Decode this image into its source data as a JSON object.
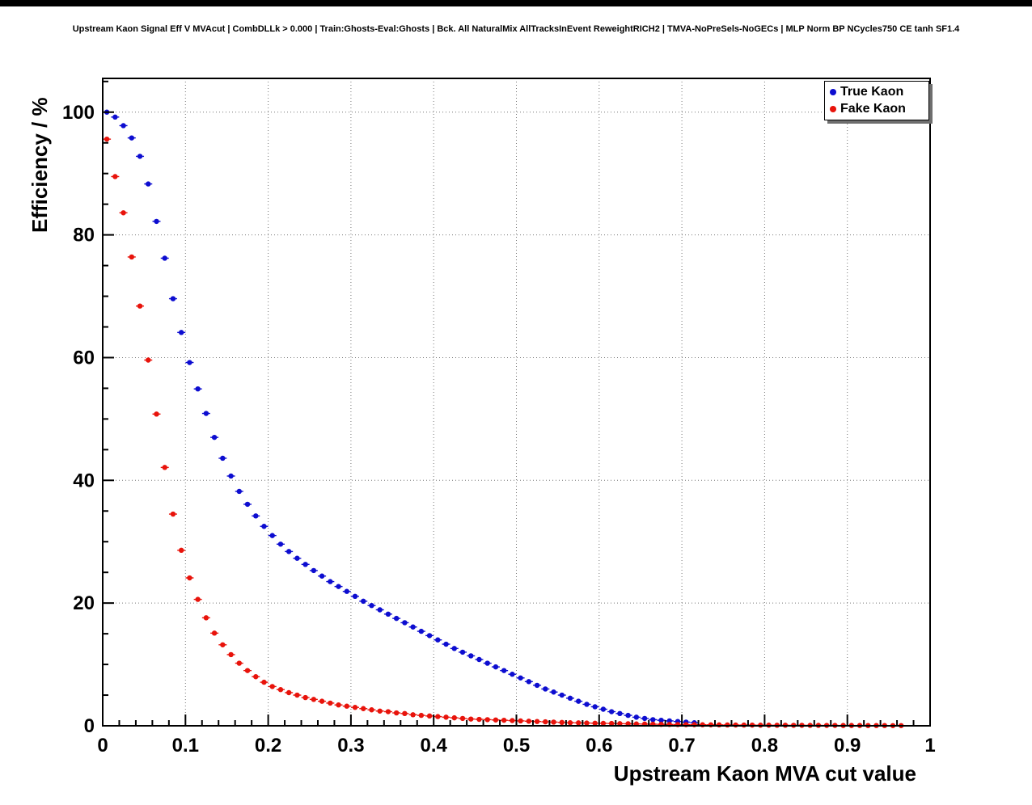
{
  "window": {
    "top_bar_color": "#000000",
    "background": "#ffffff"
  },
  "title": "Upstream Kaon Signal Eff V MVAcut | CombDLLk > 0.000 | Train:Ghosts-Eval:Ghosts | Bck. All NaturalMix AllTracksInEvent ReweightRICH2 | TMVA-NoPreSels-NoGECs | MLP Norm BP NCycles750 CE tanh SF1.4",
  "legend": {
    "position": "top-right",
    "entries": [
      {
        "label": "True Kaon",
        "color": "#0d0dd0",
        "marker": "dot"
      },
      {
        "label": "Fake Kaon",
        "color": "#e8130b",
        "marker": "dot"
      }
    ]
  },
  "chart_data": {
    "type": "scatter",
    "title": "Upstream Kaon Signal Eff V MVAcut | CombDLLk > 0.000 | Train:Ghosts-Eval:Ghosts | Bck. All NaturalMix AllTracksInEvent ReweightRICH2 | TMVA-NoPreSels-NoGECs | MLP Norm BP NCycles750 CE tanh SF1.4",
    "xlabel": "Upstream Kaon MVA cut value",
    "ylabel": "Efficiency / %",
    "xlim": [
      0,
      1
    ],
    "ylim": [
      0,
      105.5
    ],
    "grid": true,
    "grid_style": "dotted",
    "legend_position": "top-right",
    "xticks": [
      0,
      0.1,
      0.2,
      0.3,
      0.4,
      0.5,
      0.6,
      0.7,
      0.8,
      0.9,
      1
    ],
    "xtick_labels": [
      "0",
      "0.1",
      "0.2",
      "0.3",
      "0.4",
      "0.5",
      "0.6",
      "0.7",
      "0.8",
      "0.9",
      "1"
    ],
    "yticks": [
      0,
      20,
      40,
      60,
      80,
      100
    ],
    "ytick_labels": [
      "0",
      "20",
      "40",
      "60",
      "80",
      "100"
    ],
    "minor_tick_step_x": 0.02,
    "minor_tick_step_y": 5,
    "series": [
      {
        "name": "True Kaon",
        "color": "#0d0dd0",
        "x": [
          0.005,
          0.015,
          0.025,
          0.035,
          0.045,
          0.055,
          0.065,
          0.075,
          0.085,
          0.095,
          0.105,
          0.115,
          0.125,
          0.135,
          0.145,
          0.155,
          0.165,
          0.175,
          0.185,
          0.195,
          0.205,
          0.215,
          0.225,
          0.235,
          0.245,
          0.255,
          0.265,
          0.275,
          0.285,
          0.295,
          0.305,
          0.315,
          0.325,
          0.335,
          0.345,
          0.355,
          0.365,
          0.375,
          0.385,
          0.395,
          0.405,
          0.415,
          0.425,
          0.435,
          0.445,
          0.455,
          0.465,
          0.475,
          0.485,
          0.495,
          0.505,
          0.515,
          0.525,
          0.535,
          0.545,
          0.555,
          0.565,
          0.575,
          0.585,
          0.595,
          0.605,
          0.615,
          0.625,
          0.635,
          0.645,
          0.655,
          0.665,
          0.675,
          0.685,
          0.695,
          0.705,
          0.715
        ],
        "y": [
          100,
          99.2,
          97.8,
          95.8,
          92.8,
          88.3,
          82.2,
          76.2,
          69.6,
          64.1,
          59.2,
          54.9,
          50.9,
          47.0,
          43.6,
          40.7,
          38.2,
          36.1,
          34.2,
          32.5,
          31.0,
          29.6,
          28.4,
          27.3,
          26.3,
          25.3,
          24.4,
          23.5,
          22.7,
          21.9,
          21.1,
          20.3,
          19.6,
          18.9,
          18.2,
          17.5,
          16.8,
          16.1,
          15.4,
          14.7,
          14.0,
          13.3,
          12.6,
          12.0,
          11.4,
          10.8,
          10.2,
          9.6,
          9.0,
          8.4,
          7.8,
          7.2,
          6.6,
          6.0,
          5.5,
          5.0,
          4.5,
          4.0,
          3.5,
          3.1,
          2.7,
          2.3,
          2.0,
          1.7,
          1.4,
          1.2,
          1.0,
          0.9,
          0.8,
          0.7,
          0.6,
          0.5
        ]
      },
      {
        "name": "Fake Kaon",
        "color": "#e8130b",
        "x": [
          0.005,
          0.015,
          0.025,
          0.035,
          0.045,
          0.055,
          0.065,
          0.075,
          0.085,
          0.095,
          0.105,
          0.115,
          0.125,
          0.135,
          0.145,
          0.155,
          0.165,
          0.175,
          0.185,
          0.195,
          0.205,
          0.215,
          0.225,
          0.235,
          0.245,
          0.255,
          0.265,
          0.275,
          0.285,
          0.295,
          0.305,
          0.315,
          0.325,
          0.335,
          0.345,
          0.355,
          0.365,
          0.375,
          0.385,
          0.395,
          0.405,
          0.415,
          0.425,
          0.435,
          0.445,
          0.455,
          0.465,
          0.475,
          0.485,
          0.495,
          0.505,
          0.515,
          0.525,
          0.535,
          0.545,
          0.555,
          0.565,
          0.575,
          0.585,
          0.595,
          0.605,
          0.615,
          0.625,
          0.635,
          0.645,
          0.655,
          0.665,
          0.675,
          0.685,
          0.695,
          0.705,
          0.715,
          0.725,
          0.735,
          0.745,
          0.755,
          0.765,
          0.775,
          0.785,
          0.795,
          0.805,
          0.815,
          0.825,
          0.835,
          0.845,
          0.855,
          0.865,
          0.875,
          0.885,
          0.895,
          0.905,
          0.915,
          0.925,
          0.935,
          0.945,
          0.955,
          0.965
        ],
        "y": [
          95.6,
          89.5,
          83.6,
          76.4,
          68.4,
          59.6,
          50.8,
          42.1,
          34.5,
          28.6,
          24.1,
          20.6,
          17.6,
          15.1,
          13.2,
          11.6,
          10.2,
          9.0,
          8.0,
          7.1,
          6.4,
          5.9,
          5.4,
          5.0,
          4.6,
          4.3,
          4.0,
          3.7,
          3.4,
          3.2,
          3.0,
          2.8,
          2.6,
          2.4,
          2.3,
          2.1,
          2.0,
          1.8,
          1.7,
          1.6,
          1.5,
          1.4,
          1.3,
          1.2,
          1.1,
          1.05,
          1.0,
          0.95,
          0.9,
          0.85,
          0.8,
          0.75,
          0.7,
          0.65,
          0.6,
          0.55,
          0.5,
          0.48,
          0.45,
          0.42,
          0.4,
          0.38,
          0.35,
          0.33,
          0.3,
          0.28,
          0.26,
          0.24,
          0.22,
          0.2,
          0.19,
          0.18,
          0.17,
          0.16,
          0.15,
          0.14,
          0.13,
          0.12,
          0.11,
          0.1,
          0.1,
          0.09,
          0.09,
          0.08,
          0.08,
          0.07,
          0.07,
          0.06,
          0.06,
          0.05,
          0.05,
          0.05,
          0.04,
          0.04,
          0.04,
          0.03,
          0.03
        ]
      }
    ]
  }
}
